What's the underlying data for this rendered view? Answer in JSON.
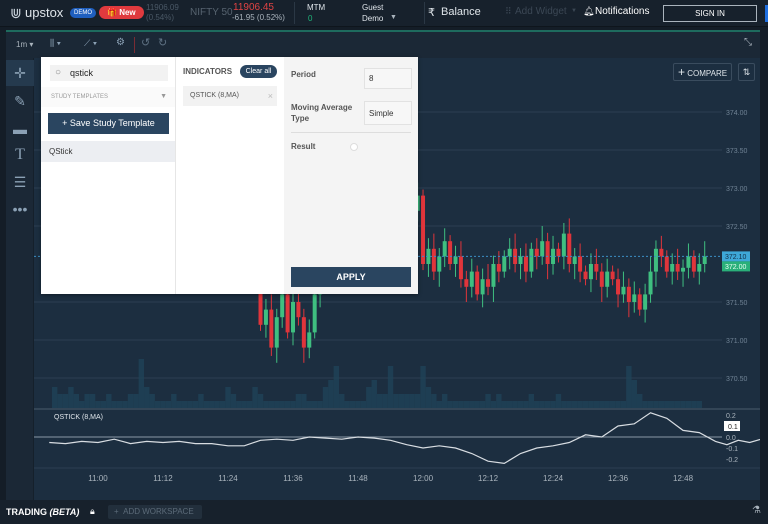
{
  "header": {
    "brand": "upstox",
    "demo_badge": "DEMO",
    "new_button": "New",
    "ghost_ticker": "11906.09 (0.54%)",
    "index_name": "NIFTY 50",
    "index_value": "11906.45",
    "index_change": "-61.95 (0.52%)",
    "mtm_label": "MTM",
    "mtm_value": "0",
    "user_line1": "Guest",
    "user_line2": "Demo",
    "balance_label": "Balance",
    "currency_symbol": "₹",
    "add_widget": "Add Widget",
    "notifications": "Notifications",
    "sign_in": "SIGN IN"
  },
  "toolbar": {
    "interval": "1m",
    "compare": "COMPARE"
  },
  "dialog": {
    "search_value": "qstick",
    "study_templates": "STUDY TEMPLATES",
    "save_template": "+ Save Study Template",
    "results": [
      "QStick"
    ],
    "indicators_heading": "INDICATORS",
    "clear_all": "Clear all",
    "active_indicators": [
      "QSTICK (8,MA)"
    ],
    "period_label": "Period",
    "period_value": "8",
    "ma_type_label_1": "Moving Average",
    "ma_type_label_2": "Type",
    "ma_type_value": "Simple",
    "result_label": "Result",
    "apply": "APPLY"
  },
  "chart_data": {
    "type": "candlestick",
    "price_ticks": [
      "374.00",
      "373.50",
      "373.00",
      "372.50",
      "371.50",
      "371.00",
      "370.50"
    ],
    "price_tick_values": [
      374,
      373.5,
      373,
      372.5,
      371.5,
      371,
      370.5
    ],
    "last_price_label": "372.10",
    "prev_close_label": "372.00",
    "time_ticks": [
      "11:00",
      "11:12",
      "11:24",
      "11:36",
      "11:48",
      "12:00",
      "12:12",
      "12:24",
      "12:36",
      "12:48"
    ],
    "time_tick_minutes": [
      660,
      672,
      684,
      696,
      708,
      720,
      732,
      744,
      756,
      768
    ],
    "candles_start_minute": 690,
    "first_open": 372.4,
    "closes": [
      371.2,
      371.4,
      370.9,
      371.3,
      371.6,
      371.1,
      371.5,
      371.3,
      370.9,
      371.1,
      371.6,
      372.0,
      372.3,
      372.4,
      372.6,
      372.5,
      372.8,
      372.7,
      373.0,
      372.9,
      372.6,
      372.8,
      373.1,
      372.9,
      373.0,
      372.8,
      373.1,
      372.9,
      372.7,
      372.9,
      372.0,
      372.2,
      371.9,
      372.1,
      372.3,
      372.0,
      372.1,
      371.8,
      371.7,
      371.9,
      371.6,
      371.8,
      371.7,
      372.0,
      371.9,
      372.1,
      372.2,
      372.0,
      372.1,
      371.9,
      372.2,
      372.1,
      372.3,
      372.0,
      372.2,
      372.1,
      372.4,
      372.0,
      372.1,
      371.9,
      371.8,
      372.0,
      371.9,
      371.7,
      371.9,
      371.8,
      371.6,
      371.7,
      371.5,
      371.6,
      371.4,
      371.6,
      371.9,
      372.2,
      372.1,
      371.9,
      372.0,
      371.9,
      371.95,
      372.1,
      371.9,
      372.0,
      372.1
    ],
    "volume_start_minute": 652,
    "volume": [
      3,
      2,
      2,
      3,
      2,
      1,
      2,
      2,
      1,
      1,
      2,
      1,
      1,
      1,
      2,
      2,
      7,
      3,
      2,
      1,
      1,
      1,
      2,
      1,
      1,
      1,
      1,
      2,
      1,
      1,
      1,
      1,
      3,
      2,
      1,
      1,
      1,
      3,
      2,
      1,
      1,
      1,
      1,
      1,
      1,
      2,
      2,
      1,
      1,
      1,
      3,
      4,
      6,
      2,
      1,
      1,
      1,
      1,
      3,
      4,
      2,
      2,
      6,
      2,
      2,
      2,
      2,
      2,
      6,
      3,
      2,
      1,
      2,
      1,
      1,
      1,
      1,
      1,
      1,
      1,
      2,
      1,
      2,
      1,
      1,
      1,
      1,
      1,
      2,
      1,
      1,
      1,
      1,
      2,
      1,
      1,
      1,
      1,
      1,
      1,
      1,
      1,
      1,
      1,
      1,
      1,
      6,
      4,
      2,
      1,
      1,
      1,
      1,
      1,
      1,
      1,
      1,
      1,
      1,
      1
    ],
    "qstick": {
      "label": "QSTICK (8,MA)",
      "ticks": [
        "0.2",
        "0.1",
        "0.0",
        "-0.1",
        "-0.2"
      ],
      "tick_values": [
        0.2,
        0.1,
        0,
        -0.1,
        -0.2
      ],
      "start_minute": 651,
      "step_minutes": 3,
      "values": [
        -0.05,
        -0.06,
        -0.04,
        -0.05,
        -0.02,
        -0.06,
        -0.04,
        -0.05,
        -0.04,
        -0.06,
        -0.06,
        -0.08,
        -0.08,
        -0.03,
        -0.02,
        -0.03,
        0.0,
        -0.01,
        -0.02,
        0.0,
        -0.01,
        -0.03,
        -0.07,
        -0.1,
        -0.08,
        -0.1,
        -0.15,
        -0.22,
        -0.24,
        -0.15,
        -0.1,
        -0.08,
        -0.05,
        0.02,
        0.0,
        0.1,
        0.12,
        0.22,
        0.17,
        0.06,
        0.04
      ],
      "values_tail_start_minute": 774,
      "current_label": "0.1"
    }
  },
  "qstick_tail": [
    -0.04,
    -0.07,
    -0.03,
    -0.05,
    -0.02,
    -0.06,
    -0.04,
    -0.03,
    0.0,
    -0.02,
    0.01,
    -0.03,
    -0.02,
    -0.05,
    -0.06,
    -0.03,
    0.06,
    0.04,
    0.06,
    0.1
  ],
  "bottombar": {
    "workspace": "TRADING",
    "beta": "(BETA)",
    "add_workspace": "ADD WORKSPACE"
  }
}
